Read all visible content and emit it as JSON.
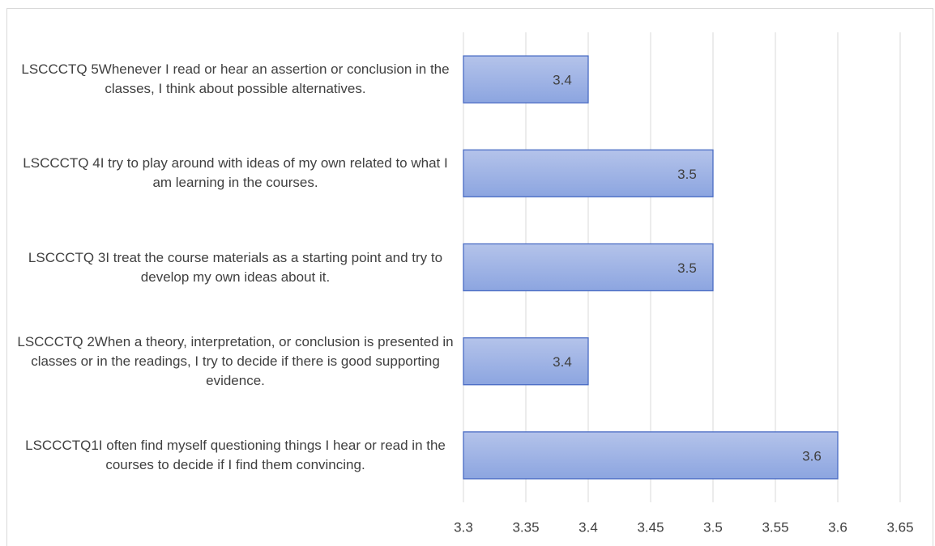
{
  "chart_data": {
    "type": "bar",
    "orientation": "horizontal",
    "categories": [
      "LSCCCTQ 5Whenever I read or hear an assertion or conclusion in the classes, I think about possible alternatives.",
      "LSCCCTQ 4I try to play around with ideas of my own related to what I am learning in the courses.",
      "LSCCCTQ 3I treat the course materials as a starting point and try to develop my own ideas about it.",
      "LSCCCTQ 2When a theory, interpretation, or conclusion is presented in classes or in the readings, I try to decide if there is good supporting evidence.",
      "LSCCCTQ1I often find myself questioning things I hear or read in the courses to decide if I find them convincing."
    ],
    "values": [
      3.4,
      3.5,
      3.5,
      3.4,
      3.6
    ],
    "color": "#8ca5e0",
    "xlim": [
      3.3,
      3.65
    ],
    "xticks": [
      3.3,
      3.35,
      3.4,
      3.45,
      3.5,
      3.55,
      3.6,
      3.65
    ],
    "grid": true
  }
}
